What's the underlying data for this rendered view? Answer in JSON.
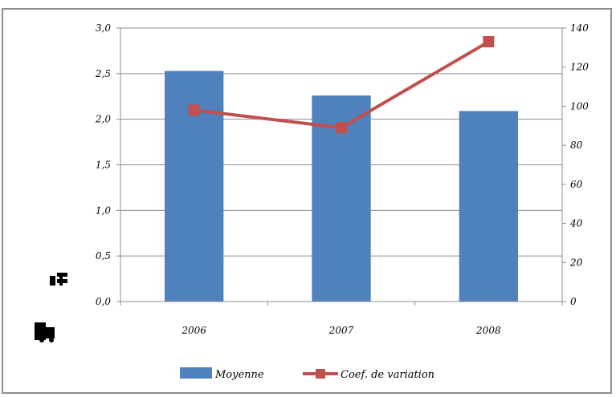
{
  "chart_data": {
    "type": "bar+line",
    "categories": [
      "2006",
      "2007",
      "2008"
    ],
    "series": [
      {
        "name": "Moyenne",
        "type": "bar",
        "axis": "left",
        "color": "#4f81bd",
        "values": [
          2.53,
          2.26,
          2.09
        ]
      },
      {
        "name": "Coef. de variation",
        "type": "line",
        "axis": "right",
        "color": "#c0504d",
        "values": [
          98,
          89,
          133
        ]
      }
    ],
    "y_left": {
      "ylim": [
        0,
        3
      ],
      "ticks": [
        0,
        0.5,
        1,
        1.5,
        2,
        2.5,
        3
      ],
      "tick_labels": [
        "0,0",
        "0,5",
        "1,0",
        "1,5",
        "2,0",
        "2,5",
        "3,0"
      ]
    },
    "y_right": {
      "ylim": [
        0,
        140
      ],
      "ticks": [
        0,
        20,
        40,
        60,
        80,
        100,
        120,
        140
      ],
      "tick_labels": [
        "0",
        "20",
        "40",
        "60",
        "80",
        "100",
        "120",
        "140"
      ]
    },
    "grid": true,
    "legend_position": "bottom"
  }
}
